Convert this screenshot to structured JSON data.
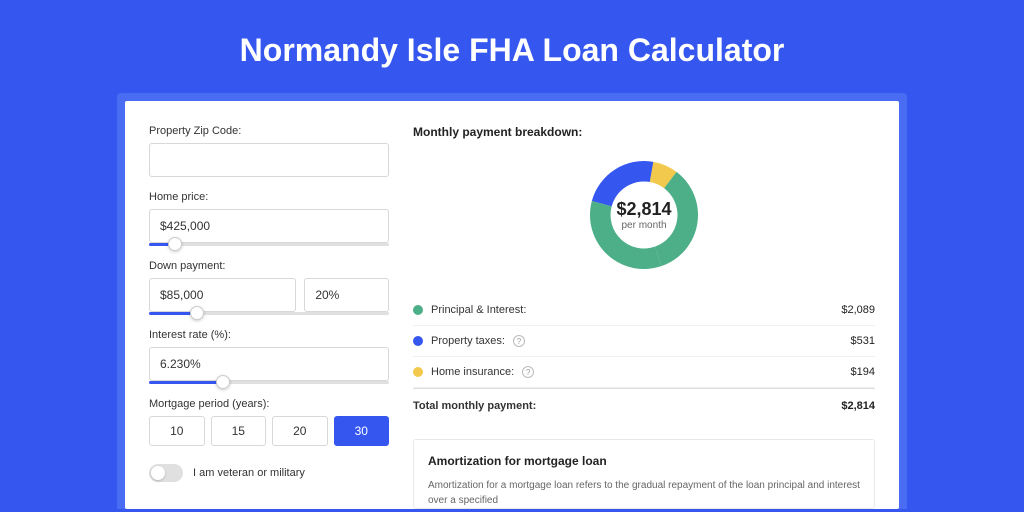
{
  "page": {
    "title": "Normandy Isle FHA Loan Calculator",
    "background_color": "#3557f0",
    "card_background": "#ffffff"
  },
  "form": {
    "zip": {
      "label": "Property Zip Code:",
      "value": ""
    },
    "home_price": {
      "label": "Home price:",
      "value": "$425,000",
      "slider_pct": 11
    },
    "down_payment": {
      "label": "Down payment:",
      "value": "$85,000",
      "pct": "20%",
      "slider_pct": 20
    },
    "interest_rate": {
      "label": "Interest rate (%):",
      "value": "6.230%",
      "slider_pct": 31
    },
    "mortgage_period": {
      "label": "Mortgage period (years):",
      "options": [
        "10",
        "15",
        "20",
        "30"
      ],
      "selected": "30"
    },
    "veteran": {
      "label": "I am veteran or military",
      "checked": false
    }
  },
  "breakdown": {
    "title": "Monthly payment breakdown:",
    "donut": {
      "type": "donut",
      "center_amount": "$2,814",
      "center_sub": "per month",
      "segments": [
        {
          "label": "Principal & Interest",
          "value": 2089,
          "color": "#4caf87",
          "deg": 267
        },
        {
          "label": "Property taxes",
          "value": 531,
          "color": "#3557f0",
          "deg": 68
        },
        {
          "label": "Home insurance",
          "value": 194,
          "color": "#f2c94c",
          "deg": 25
        }
      ],
      "inner_ratio": 0.62,
      "background_color": "#ffffff"
    },
    "rows": [
      {
        "dot_color": "#4caf87",
        "label": "Principal & Interest:",
        "help": false,
        "value": "$2,089"
      },
      {
        "dot_color": "#3557f0",
        "label": "Property taxes:",
        "help": true,
        "value": "$531"
      },
      {
        "dot_color": "#f2c94c",
        "label": "Home insurance:",
        "help": true,
        "value": "$194"
      }
    ],
    "total": {
      "label": "Total monthly payment:",
      "value": "$2,814"
    }
  },
  "amortization": {
    "title": "Amortization for mortgage loan",
    "body": "Amortization for a mortgage loan refers to the gradual repayment of the loan principal and interest over a specified"
  }
}
